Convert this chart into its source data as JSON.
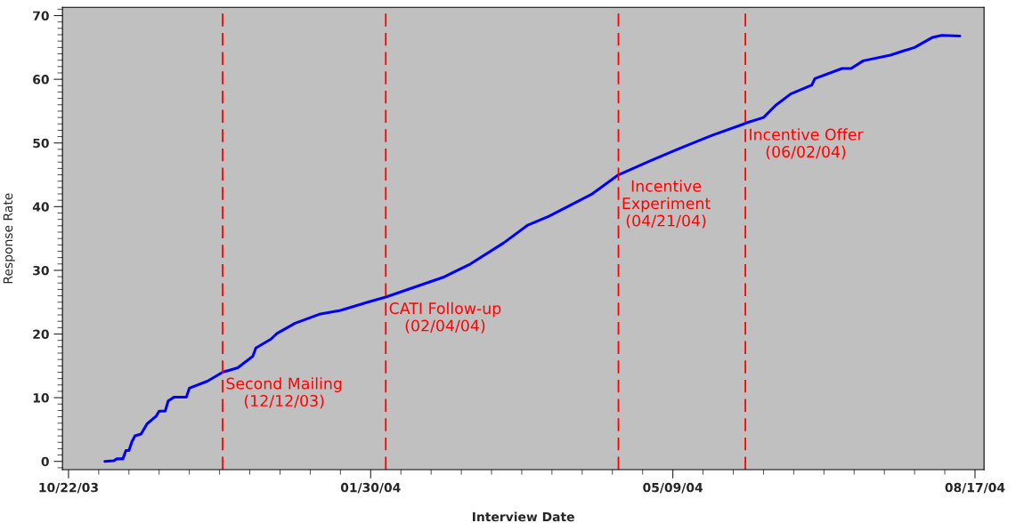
{
  "chart_data": {
    "type": "line",
    "xlabel": "Interview Date",
    "ylabel": "Response Rate",
    "x": [
      "2003-11-03",
      "2003-11-06",
      "2003-11-07",
      "2003-11-09",
      "2003-11-10",
      "2003-11-11",
      "2003-11-12",
      "2003-11-13",
      "2003-11-15",
      "2003-11-17",
      "2003-11-20",
      "2003-11-21",
      "2003-11-23",
      "2003-11-24",
      "2003-11-26",
      "2003-11-30",
      "2003-12-01",
      "2003-12-07",
      "2003-12-12",
      "2003-12-17",
      "2003-12-22",
      "2003-12-23",
      "2003-12-28",
      "2003-12-30",
      "2004-01-05",
      "2004-01-09",
      "2004-01-13",
      "2004-01-20",
      "2004-01-29",
      "2004-02-04",
      "2004-02-23",
      "2004-03-03",
      "2004-03-14",
      "2004-03-22",
      "2004-03-29",
      "2004-04-12",
      "2004-04-21",
      "2004-05-02",
      "2004-05-10",
      "2004-05-22",
      "2004-06-01",
      "2004-06-02",
      "2004-06-08",
      "2004-06-12",
      "2004-06-17",
      "2004-06-24",
      "2004-06-25",
      "2004-07-04",
      "2004-07-07",
      "2004-07-11",
      "2004-07-20",
      "2004-07-28",
      "2004-08-03",
      "2004-08-06",
      "2004-08-12"
    ],
    "series": [
      {
        "color": "#0000ff",
        "values": [
          0,
          0.1,
          0.4,
          0.4,
          1.7,
          1.7,
          3.1,
          4.0,
          4.3,
          5.9,
          7.1,
          7.9,
          7.9,
          9.5,
          10.1,
          10.1,
          11.5,
          12.6,
          14.0,
          14.7,
          16.5,
          17.8,
          19.2,
          20.1,
          21.7,
          22.4,
          23.1,
          23.7,
          25.0,
          25.8,
          28.9,
          31.0,
          34.3,
          37.1,
          38.5,
          41.9,
          45.0,
          47.3,
          48.9,
          51.2,
          52.9,
          53.1,
          54.0,
          55.9,
          57.7,
          59.1,
          60.1,
          61.7,
          61.7,
          62.9,
          63.8,
          65.0,
          66.6,
          66.9,
          66.8
        ]
      }
    ],
    "xlim": [
      "2003-10-20",
      "2004-08-20"
    ],
    "xticks": [
      {
        "value": "2003-10-22",
        "label": "10/22/03"
      },
      {
        "value": "2004-01-30",
        "label": "01/30/04"
      },
      {
        "value": "2004-05-09",
        "label": "05/09/04"
      },
      {
        "value": "2004-08-17",
        "label": "08/17/04"
      }
    ],
    "ylim": [
      -1.3,
      71.3
    ],
    "yticks": [
      0,
      10,
      20,
      30,
      40,
      50,
      60,
      70
    ],
    "ref_lines": [
      {
        "axis": "x",
        "value": "2003-12-12",
        "label": "Second Mailing\n(12/12/03)",
        "color": "#ff0000",
        "line_style": "dashed"
      },
      {
        "axis": "x",
        "value": "2004-02-04",
        "label": "CATI Follow-up\n(02/04/04)",
        "color": "#ff0000",
        "line_style": "dashed"
      },
      {
        "axis": "x",
        "value": "2004-04-21",
        "label": "Incentive\nExperiment\n(04/21/04)",
        "color": "#ff0000",
        "line_style": "dashed"
      },
      {
        "axis": "x",
        "value": "2004-06-02",
        "label": "Incentive Offer\n(06/02/04)",
        "color": "#ff0000",
        "line_style": "dashed"
      }
    ],
    "grid": false,
    "legend": false
  }
}
